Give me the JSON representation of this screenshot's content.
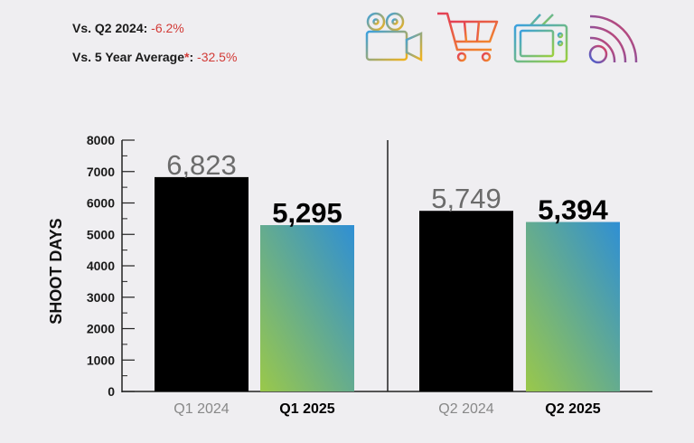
{
  "stats": {
    "line1_label": "Vs. Q2 2024:",
    "line1_value": "-6.2%",
    "line2_label": "Vs. 5 Year Average",
    "line2_star": "*",
    "line2_colon": ":",
    "line2_value": "-32.5%"
  },
  "icons": [
    "film-camera-icon",
    "shopping-cart-icon",
    "tv-icon",
    "broadcast-signal-icon"
  ],
  "colors": {
    "background": "#efeef1",
    "bar_prior": "#000000",
    "gradient_top": "#2f8fd4",
    "gradient_bottom": "#9ac84a",
    "negative": "#d23a36",
    "prior_label": "#6b6b6b"
  },
  "chart_data": {
    "type": "bar",
    "ylabel": "SHOOT DAYS",
    "ylim": [
      0,
      8000
    ],
    "yticks": [
      "0",
      "1000",
      "2000",
      "3000",
      "4000",
      "5000",
      "6000",
      "7000",
      "8000"
    ],
    "panels": [
      {
        "bars": [
          {
            "category": "Q1 2024",
            "value": 6823,
            "label": "6,823",
            "style": "prior"
          },
          {
            "category": "Q1 2025",
            "value": 5295,
            "label": "5,295",
            "style": "current"
          }
        ]
      },
      {
        "bars": [
          {
            "category": "Q2 2024",
            "value": 5749,
            "label": "5,749",
            "style": "prior"
          },
          {
            "category": "Q2 2025",
            "value": 5394,
            "label": "5,394",
            "style": "current"
          }
        ]
      }
    ]
  }
}
